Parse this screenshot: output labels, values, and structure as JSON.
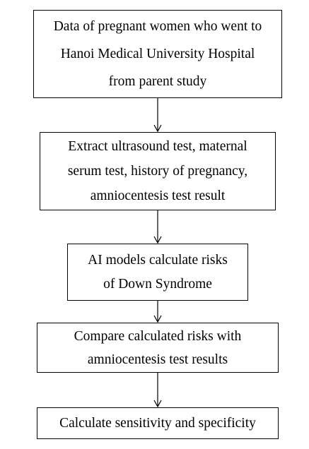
{
  "steps": [
    {
      "lines": [
        "Data of pregnant women who went to",
        "Hanoi Medical University Hospital",
        "from parent study"
      ]
    },
    {
      "lines": [
        "Extract ultrasound test, maternal",
        "serum test, history of pregnancy,",
        "amniocentesis test result"
      ]
    },
    {
      "lines": [
        "AI models calculate risks",
        "of Down Syndrome"
      ]
    },
    {
      "lines": [
        "Compare calculated risks with",
        "amniocentesis test results"
      ]
    },
    {
      "lines": [
        "Calculate sensitivity and specificity"
      ]
    }
  ]
}
